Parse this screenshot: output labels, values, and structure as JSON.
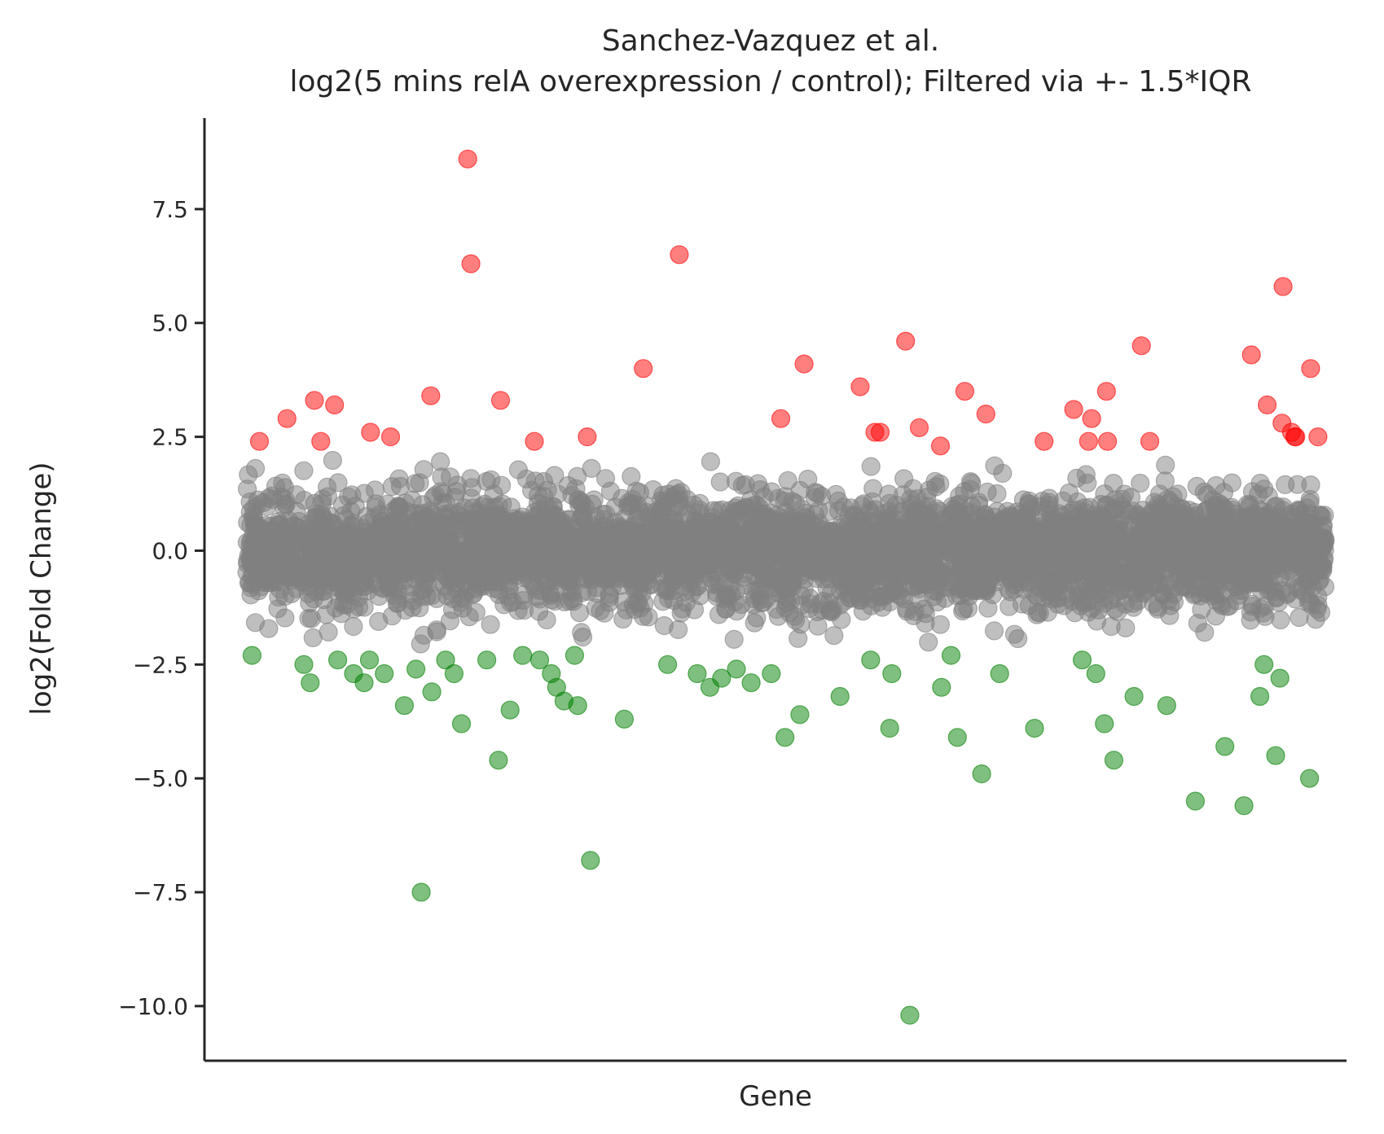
{
  "chart_data": {
    "type": "scatter",
    "title_lines": [
      "Sanchez-Vazquez et al.",
      "log2(5 mins relA overexpression / control); Filtered via +- 1.5*IQR"
    ],
    "xlabel": "Gene",
    "ylabel": "log2(Fold Change)",
    "ylim": [
      -11.2,
      9.5
    ],
    "xlim": [
      -0.04,
      1.04
    ],
    "yticks": [
      -10.0,
      -7.5,
      -5.0,
      -2.5,
      0.0,
      2.5,
      5.0,
      7.5
    ],
    "ytick_labels": [
      "−10.0",
      "−7.5",
      "−5.0",
      "−2.5",
      "0.0",
      "2.5",
      "5.0",
      "7.5"
    ],
    "grid": false,
    "legend": "none",
    "colors": {
      "up": "#ff0000",
      "down": "#008000",
      "other": "#808080"
    },
    "marker_alpha": 0.5,
    "series": [
      {
        "category": "up",
        "x": [
          0.012,
          0.038,
          0.064,
          0.07,
          0.083,
          0.117,
          0.136,
          0.174,
          0.209,
          0.212,
          0.24,
          0.272,
          0.322,
          0.375,
          0.409,
          0.505,
          0.527,
          0.58,
          0.594,
          0.599,
          0.623,
          0.636,
          0.656,
          0.679,
          0.699,
          0.754,
          0.782,
          0.796,
          0.799,
          0.813,
          0.814,
          0.846,
          0.854,
          0.95,
          0.965,
          0.979,
          0.98,
          0.988,
          0.991,
          1.006,
          1.013,
          0.992
        ],
        "y": [
          2.4,
          2.9,
          3.3,
          2.4,
          3.2,
          2.6,
          2.5,
          3.4,
          8.6,
          6.3,
          3.3,
          2.4,
          2.5,
          4.0,
          6.5,
          2.9,
          4.1,
          3.6,
          2.6,
          2.6,
          4.6,
          2.7,
          2.3,
          3.5,
          3.0,
          2.4,
          3.1,
          2.4,
          2.9,
          3.5,
          2.4,
          4.5,
          2.4,
          4.3,
          3.2,
          2.8,
          5.8,
          2.6,
          2.5,
          4.0,
          2.5,
          2.5
        ]
      },
      {
        "category": "down",
        "x": [
          0.005,
          0.054,
          0.06,
          0.086,
          0.101,
          0.111,
          0.116,
          0.13,
          0.149,
          0.16,
          0.165,
          0.175,
          0.188,
          0.196,
          0.203,
          0.227,
          0.238,
          0.249,
          0.261,
          0.277,
          0.288,
          0.293,
          0.3,
          0.31,
          0.313,
          0.325,
          0.357,
          0.398,
          0.426,
          0.438,
          0.449,
          0.463,
          0.477,
          0.496,
          0.509,
          0.523,
          0.561,
          0.59,
          0.608,
          0.61,
          0.627,
          0.657,
          0.666,
          0.672,
          0.695,
          0.712,
          0.745,
          0.79,
          0.803,
          0.811,
          0.82,
          0.839,
          0.87,
          0.897,
          0.925,
          0.943,
          0.958,
          0.973,
          1.005,
          0.962,
          0.977
        ],
        "y": [
          -2.3,
          -2.5,
          -2.9,
          -2.4,
          -2.7,
          -2.9,
          -2.4,
          -2.7,
          -3.4,
          -2.6,
          -7.5,
          -3.1,
          -2.4,
          -2.7,
          -3.8,
          -2.4,
          -4.6,
          -3.5,
          -2.3,
          -2.4,
          -2.7,
          -3.0,
          -3.3,
          -2.3,
          -3.4,
          -6.8,
          -3.7,
          -2.5,
          -2.7,
          -3.0,
          -2.8,
          -2.6,
          -2.9,
          -2.7,
          -4.1,
          -3.6,
          -3.2,
          -2.4,
          -3.9,
          -2.7,
          -10.2,
          -3.0,
          -2.3,
          -4.1,
          -4.9,
          -2.7,
          -3.9,
          -2.4,
          -2.7,
          -3.8,
          -4.6,
          -3.2,
          -3.4,
          -5.5,
          -4.3,
          -5.6,
          -3.2,
          -4.5,
          -5.0,
          -2.5,
          -2.8
        ]
      },
      {
        "category": "other",
        "n": 4200,
        "x_range": [
          0.0,
          1.02
        ],
        "y_range": [
          -2.2,
          2.2
        ],
        "note": "dense band of gray points centred on 0"
      }
    ]
  }
}
